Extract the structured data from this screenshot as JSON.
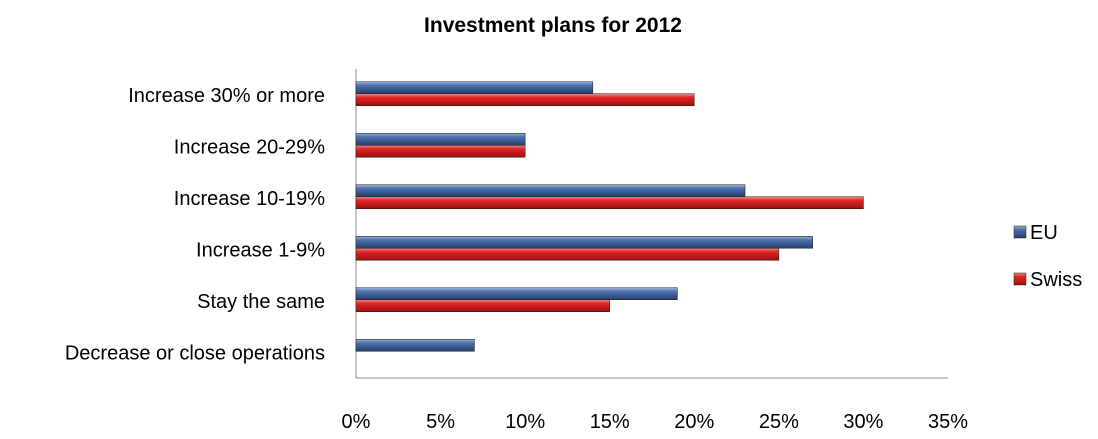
{
  "chart_data": {
    "type": "bar",
    "orientation": "horizontal",
    "title": "Investment plans for 2012",
    "categories": [
      "Increase 30% or more",
      "Increase 20-29%",
      "Increase 10-19%",
      "Increase 1-9%",
      "Stay the same",
      "Decrease or close operations"
    ],
    "series": [
      {
        "name": "EU",
        "color": "#3A5F96",
        "values": [
          14,
          10,
          23,
          27,
          19,
          7
        ]
      },
      {
        "name": "Swiss",
        "color": "#D81E1E",
        "values": [
          20,
          10,
          30,
          25,
          15,
          0
        ]
      }
    ],
    "xlim": [
      0,
      35
    ],
    "xticks": [
      0,
      5,
      10,
      15,
      20,
      25,
      30,
      35
    ],
    "tick_format": "percent",
    "grid": false,
    "legend_position": "right"
  }
}
